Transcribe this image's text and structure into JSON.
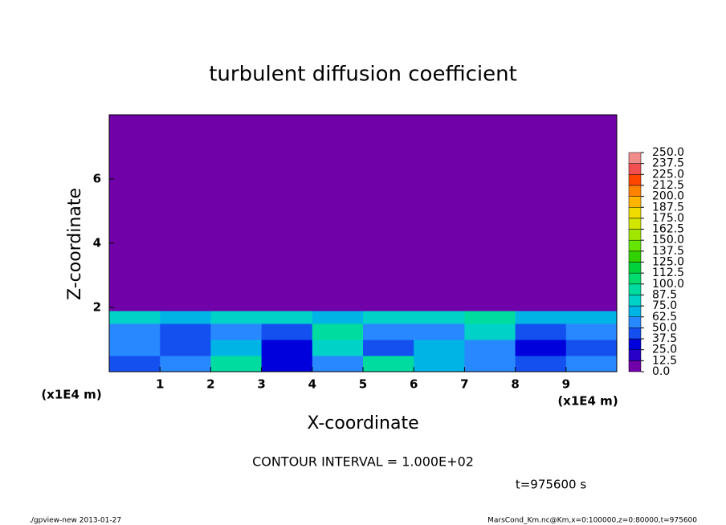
{
  "chart_data": {
    "type": "heatmap",
    "title": "turbulent diffusion coefficient",
    "x_label": "X-coordinate",
    "y_label": "Z-coordinate",
    "x_unit": "(x1E4 m)",
    "y_unit": "(x1E4 m)",
    "xlim": [
      0,
      10
    ],
    "ylim": [
      0,
      8
    ],
    "xticks": [
      1,
      2,
      3,
      4,
      5,
      6,
      7,
      8,
      9
    ],
    "yticks": [
      2,
      4,
      6
    ],
    "xbins": [
      0,
      1,
      2,
      3,
      4,
      5,
      6,
      7,
      8,
      9,
      10
    ],
    "ybins": [
      0,
      0.5,
      1,
      1.5,
      1.9,
      8
    ],
    "values": [
      [
        40,
        50,
        90,
        30,
        60,
        90,
        70,
        50,
        40,
        50
      ],
      [
        50,
        40,
        70,
        25,
        80,
        45,
        70,
        60,
        35,
        45
      ],
      [
        60,
        40,
        55,
        40,
        90,
        50,
        60,
        80,
        40,
        50
      ],
      [
        80,
        70,
        75,
        80,
        70,
        80,
        75,
        90,
        70,
        70
      ],
      [
        0,
        0,
        0,
        0,
        0,
        0,
        0,
        0,
        0,
        0
      ]
    ],
    "clim": [
      0,
      250
    ],
    "levels": [
      {
        "value": 0,
        "label": "0.0"
      },
      {
        "value": 12.5,
        "label": "12.5"
      },
      {
        "value": 25,
        "label": "25.0"
      },
      {
        "value": 37.5,
        "label": "37.5"
      },
      {
        "value": 50,
        "label": "50.0"
      },
      {
        "value": 62.5,
        "label": "62.5"
      },
      {
        "value": 75,
        "label": "75.0"
      },
      {
        "value": 87.5,
        "label": "87.5"
      },
      {
        "value": 100,
        "label": "100.0"
      },
      {
        "value": 112.5,
        "label": "112.5"
      },
      {
        "value": 125,
        "label": "125.0"
      },
      {
        "value": 137.5,
        "label": "137.5"
      },
      {
        "value": 150,
        "label": "150.0"
      },
      {
        "value": 162.5,
        "label": "162.5"
      },
      {
        "value": 175,
        "label": "175.0"
      },
      {
        "value": 187.5,
        "label": "187.5"
      },
      {
        "value": 200,
        "label": "200.0"
      },
      {
        "value": 212.5,
        "label": "212.5"
      },
      {
        "value": 225,
        "label": "225.0"
      },
      {
        "value": 237.5,
        "label": "237.5"
      },
      {
        "value": 250,
        "label": "250.0"
      }
    ],
    "colors": [
      "#7000a8",
      "#2800c8",
      "#0000dc",
      "#1450f0",
      "#2888ff",
      "#00b4e6",
      "#00d2c8",
      "#00dca0",
      "#00dc6e",
      "#00d23c",
      "#32d200",
      "#64e600",
      "#a0e600",
      "#d2e600",
      "#f0dc00",
      "#ffb400",
      "#ff8200",
      "#ff4600",
      "#f05050",
      "#f08c8c"
    ],
    "contour_interval": "CONTOUR INTERVAL = 1.000E+02",
    "time": "t=975600 s"
  },
  "footer": {
    "left": "./gpview-new   2013-01-27",
    "right": "MarsCond_Km.nc@Km,x=0:100000,z=0:80000,t=975600"
  }
}
